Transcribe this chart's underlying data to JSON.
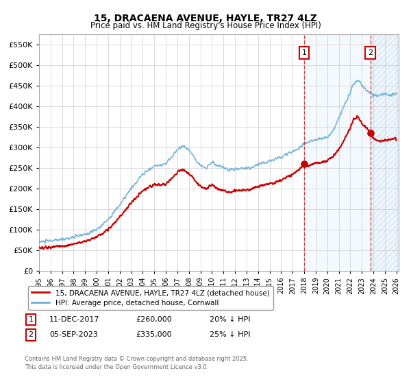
{
  "title": "15, DRACAENA AVENUE, HAYLE, TR27 4LZ",
  "subtitle": "Price paid vs. HM Land Registry's House Price Index (HPI)",
  "ylim": [
    0,
    575000
  ],
  "yticks": [
    0,
    50000,
    100000,
    150000,
    200000,
    250000,
    300000,
    350000,
    400000,
    450000,
    500000,
    550000
  ],
  "xlim_start": 1995.0,
  "xlim_end": 2026.2,
  "hpi_color": "#6baed6",
  "sale_color": "#cc0000",
  "marker1_date": 2018.0,
  "marker1_price": 260000,
  "marker2_date": 2023.75,
  "marker2_price": 335000,
  "shade_start": 2018.0,
  "shade_end": 2026.2,
  "shade2_start": 2023.75,
  "legend_label1": "15, DRACAENA AVENUE, HAYLE, TR27 4LZ (detached house)",
  "legend_label2": "HPI: Average price, detached house, Cornwall",
  "note1_label": "1",
  "note1_date": "11-DEC-2017",
  "note1_price": "£260,000",
  "note1_pct": "20% ↓ HPI",
  "note2_label": "2",
  "note2_date": "05-SEP-2023",
  "note2_price": "£335,000",
  "note2_pct": "25% ↓ HPI",
  "footer": "Contains HM Land Registry data © Crown copyright and database right 2025.\nThis data is licensed under the Open Government Licence v3.0.",
  "background_color": "#ffffff",
  "grid_color": "#cccccc"
}
